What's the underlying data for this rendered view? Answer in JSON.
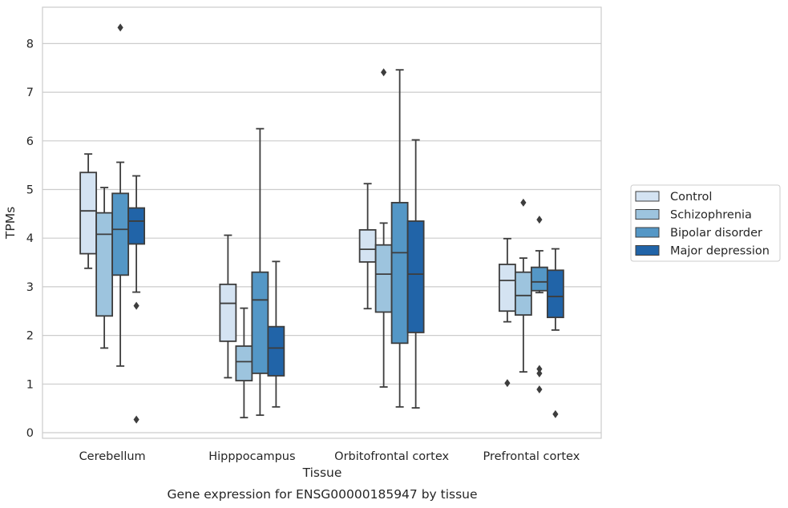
{
  "chart_data": {
    "type": "box",
    "caption": "Gene expression for ENSG00000185947 by tissue",
    "xlabel": "Tissue",
    "ylabel": "TPMs",
    "ylim": [
      -0.12,
      8.7
    ],
    "yticks": [
      0,
      1,
      2,
      3,
      4,
      5,
      6,
      7,
      8
    ],
    "grid": "horizontal",
    "legend_position": "right",
    "categories": [
      "Cerebellum",
      "Hipppocampus",
      "Orbitofrontal cortex",
      "Prefrontal cortex"
    ],
    "series": [
      {
        "name": "Control",
        "color": "#d4e3f2",
        "boxes": [
          {
            "whisker_low": 3.38,
            "q1": 3.68,
            "median": 4.56,
            "q3": 5.35,
            "whisker_high": 5.73,
            "outliers": []
          },
          {
            "whisker_low": 1.13,
            "q1": 1.88,
            "median": 2.66,
            "q3": 3.05,
            "whisker_high": 4.06,
            "outliers": []
          },
          {
            "whisker_low": 2.55,
            "q1": 3.51,
            "median": 3.77,
            "q3": 4.17,
            "whisker_high": 5.12,
            "outliers": []
          },
          {
            "whisker_low": 2.28,
            "q1": 2.5,
            "median": 3.13,
            "q3": 3.46,
            "whisker_high": 3.99,
            "outliers": [
              1.02
            ]
          }
        ]
      },
      {
        "name": "Schizophrenia",
        "color": "#9dc4de",
        "boxes": [
          {
            "whisker_low": 1.74,
            "q1": 2.4,
            "median": 4.08,
            "q3": 4.52,
            "whisker_high": 5.04,
            "outliers": []
          },
          {
            "whisker_low": 0.31,
            "q1": 1.07,
            "median": 1.46,
            "q3": 1.78,
            "whisker_high": 2.56,
            "outliers": []
          },
          {
            "whisker_low": 0.94,
            "q1": 2.48,
            "median": 3.26,
            "q3": 3.86,
            "whisker_high": 4.31,
            "outliers": [
              7.41
            ]
          },
          {
            "whisker_low": 1.25,
            "q1": 2.42,
            "median": 2.82,
            "q3": 3.3,
            "whisker_high": 3.59,
            "outliers": [
              4.73
            ]
          }
        ]
      },
      {
        "name": "Bipolar disorder",
        "color": "#5497c6",
        "boxes": [
          {
            "whisker_low": 1.37,
            "q1": 3.24,
            "median": 4.18,
            "q3": 4.92,
            "whisker_high": 5.56,
            "outliers": [
              8.33
            ]
          },
          {
            "whisker_low": 0.36,
            "q1": 1.22,
            "median": 2.73,
            "q3": 3.3,
            "whisker_high": 6.25,
            "outliers": []
          },
          {
            "whisker_low": 0.53,
            "q1": 1.84,
            "median": 3.7,
            "q3": 4.73,
            "whisker_high": 7.46,
            "outliers": []
          },
          {
            "whisker_low": 2.88,
            "q1": 2.92,
            "median": 3.1,
            "q3": 3.4,
            "whisker_high": 3.74,
            "outliers": [
              4.38,
              1.31,
              1.22,
              0.89
            ]
          }
        ]
      },
      {
        "name": "Major depression",
        "color": "#2164a8",
        "boxes": [
          {
            "whisker_low": 2.89,
            "q1": 3.88,
            "median": 4.35,
            "q3": 4.62,
            "whisker_high": 5.28,
            "outliers": [
              2.61,
              0.27
            ]
          },
          {
            "whisker_low": 0.53,
            "q1": 1.17,
            "median": 1.74,
            "q3": 2.18,
            "whisker_high": 3.52,
            "outliers": []
          },
          {
            "whisker_low": 0.51,
            "q1": 2.06,
            "median": 3.26,
            "q3": 4.35,
            "whisker_high": 6.02,
            "outliers": []
          },
          {
            "whisker_low": 2.11,
            "q1": 2.37,
            "median": 2.8,
            "q3": 3.34,
            "whisker_high": 3.78,
            "outliers": [
              0.38
            ]
          }
        ]
      }
    ]
  }
}
